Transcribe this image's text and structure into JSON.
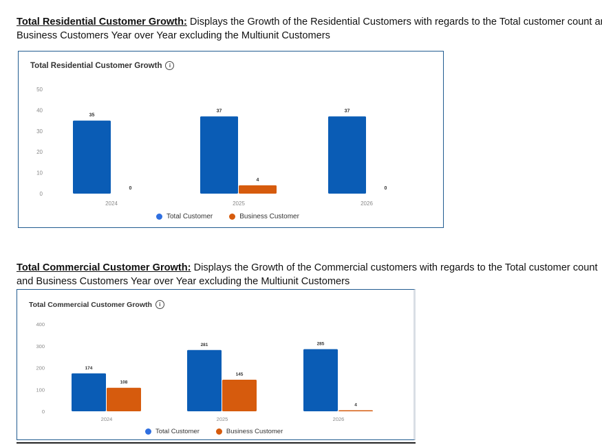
{
  "colors": {
    "total": "#0a5cb5",
    "business": "#d65b0d",
    "card_border": "#1f5a8f",
    "axis_text": "#888888"
  },
  "section1": {
    "lead": "Total Residential Customer Growth:",
    "text_line1": " Displays the Growth of the Residential Customers with regards to the Total customer count and",
    "text_line2": "Business Customers Year over Year excluding the Multiunit Customers"
  },
  "section2": {
    "lead": "Total Commercial Customer Growth:",
    "text_line1": " Displays the Growth of the Commercial customers with regards to the Total customer count",
    "text_line2": "and Business Customers Year over Year excluding the Multiunit Customers"
  },
  "chart_data": [
    {
      "type": "bar",
      "title": "Total Residential Customer Growth",
      "info_icon": "info-icon",
      "categories": [
        "2024",
        "2025",
        "2026"
      ],
      "series": [
        {
          "name": "Total Customer",
          "values": [
            35,
            37,
            37
          ]
        },
        {
          "name": "Business Customer",
          "values": [
            0,
            4,
            0
          ]
        }
      ],
      "yticks": [
        "0",
        "10",
        "20",
        "30",
        "40",
        "50"
      ],
      "ylim": [
        0,
        50
      ],
      "xlabel": "",
      "ylabel": "",
      "legend": "bottom-center"
    },
    {
      "type": "bar",
      "title": "Total Commercial Customer Growth",
      "info_icon": "info-icon",
      "categories": [
        "2024",
        "2025",
        "2026"
      ],
      "series": [
        {
          "name": "Total Customer",
          "values": [
            174,
            281,
            285
          ]
        },
        {
          "name": "Business Customer",
          "values": [
            108,
            145,
            4
          ]
        }
      ],
      "yticks": [
        "0",
        "100",
        "200",
        "300",
        "400"
      ],
      "ylim": [
        0,
        400
      ],
      "xlabel": "",
      "ylabel": "",
      "legend": "bottom-center"
    }
  ]
}
